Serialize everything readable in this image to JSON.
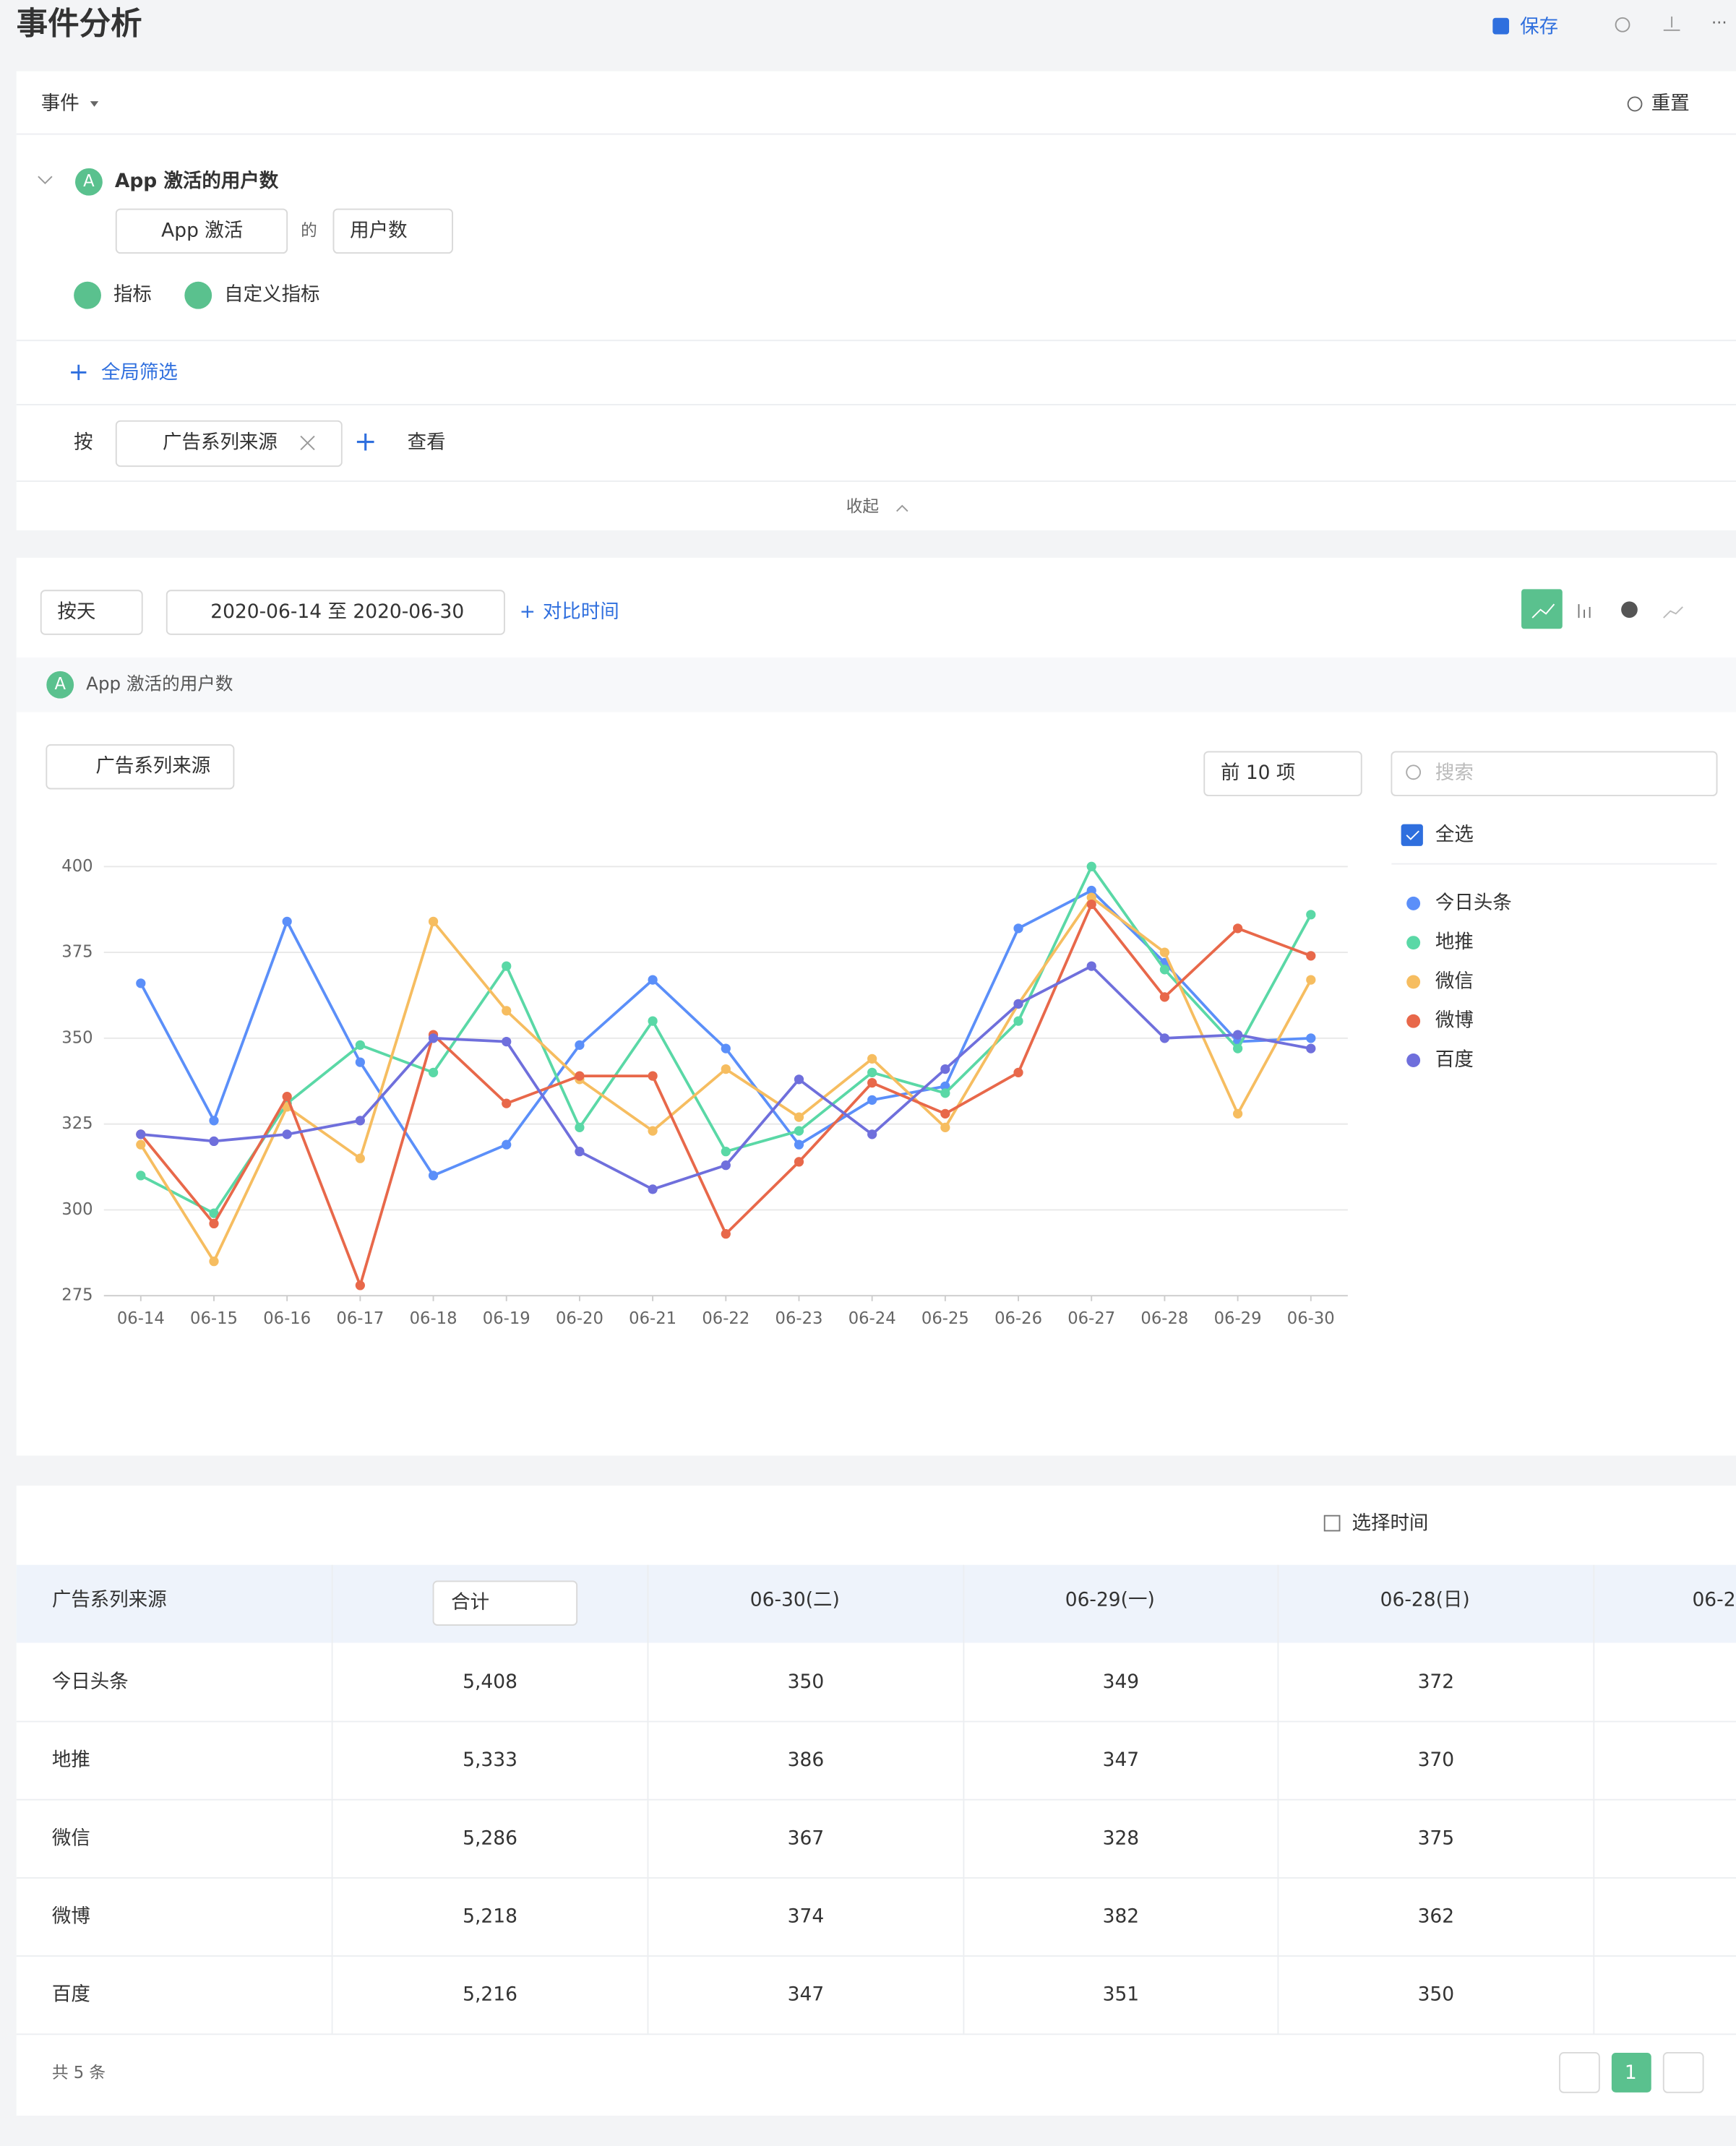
{
  "header": {
    "title": "事件分析",
    "save": "保存"
  },
  "query": {
    "section": "事件",
    "reset": "重置",
    "metric_badge": "A",
    "metric_name": "App 激活的用户数",
    "event": "App 激活",
    "of": "的",
    "measure": "用户数",
    "add_metric": "指标",
    "add_custom": "自定义指标",
    "global_filter": "全局筛选",
    "by": "按",
    "group": "广告系列来源",
    "view": "查看",
    "collapse": "收起"
  },
  "toolbar": {
    "granularity": "按天",
    "date_range": "2020-06-14 至 2020-06-30",
    "compare": "对比时间",
    "metric_badge": "A",
    "metric_name": "App 激活的用户数",
    "group": "广告系列来源",
    "top": "前 10 项",
    "search": "搜索",
    "select_all": "全选"
  },
  "chart_data": {
    "type": "line",
    "categories": [
      "06-14",
      "06-15",
      "06-16",
      "06-17",
      "06-18",
      "06-19",
      "06-20",
      "06-21",
      "06-22",
      "06-23",
      "06-24",
      "06-25",
      "06-26",
      "06-27",
      "06-28",
      "06-29",
      "06-30"
    ],
    "series": [
      {
        "name": "今日头条",
        "color": "#5b8ff9",
        "values": [
          366,
          326,
          384,
          343,
          310,
          319,
          348,
          367,
          347,
          319,
          332,
          336,
          382,
          393,
          372,
          349,
          350
        ]
      },
      {
        "name": "地推",
        "color": "#5ad8a6",
        "values": [
          310,
          299,
          331,
          348,
          340,
          371,
          324,
          355,
          317,
          323,
          340,
          334,
          355,
          400,
          370,
          347,
          386
        ]
      },
      {
        "name": "微信",
        "color": "#f6bd60",
        "values": [
          319,
          285,
          330,
          315,
          384,
          358,
          338,
          323,
          341,
          327,
          344,
          324,
          360,
          391,
          375,
          328,
          367
        ]
      },
      {
        "name": "微博",
        "color": "#e8684a",
        "values": [
          322,
          296,
          333,
          278,
          351,
          331,
          339,
          339,
          293,
          314,
          337,
          328,
          340,
          389,
          362,
          382,
          374
        ]
      },
      {
        "name": "百度",
        "color": "#6f6fdc",
        "values": [
          322,
          320,
          322,
          326,
          350,
          349,
          317,
          306,
          313,
          338,
          322,
          341,
          360,
          371,
          350,
          351,
          347
        ]
      }
    ],
    "ylim": [
      275,
      400
    ],
    "yticks": [
      275,
      300,
      325,
      350,
      375,
      400
    ],
    "grid": true,
    "legend": "right"
  },
  "table": {
    "time": "选择时间",
    "columns": [
      "广告系列来源",
      "合计",
      "06-30(二)",
      "06-29(一)",
      "06-28(日)",
      "06-2"
    ],
    "rows": [
      [
        "今日头条",
        "5,408",
        "350",
        "349",
        "372"
      ],
      [
        "地推",
        "5,333",
        "386",
        "347",
        "370"
      ],
      [
        "微信",
        "5,286",
        "367",
        "328",
        "375"
      ],
      [
        "微博",
        "5,218",
        "374",
        "382",
        "362"
      ],
      [
        "百度",
        "5,216",
        "347",
        "351",
        "350"
      ]
    ],
    "footer": "共 5 条",
    "page": "1"
  }
}
